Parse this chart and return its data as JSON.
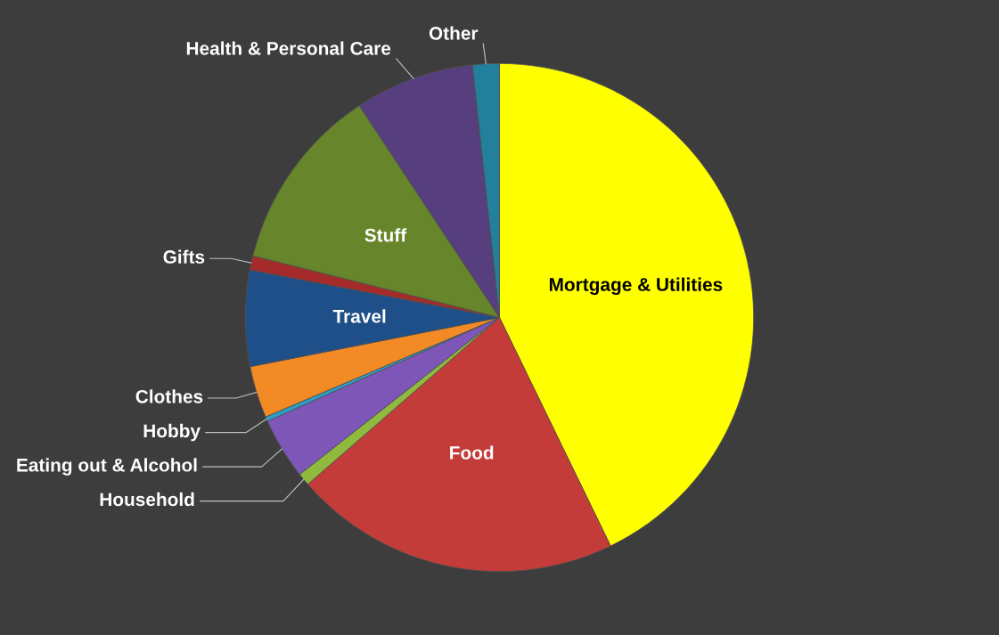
{
  "chart_data": {
    "type": "pie",
    "categories": [
      "Mortgage & Utilities",
      "Food",
      "Household",
      "Eating out & Alcohol",
      "Hobby",
      "Clothes",
      "Travel",
      "Gifts",
      "Stuff",
      "Health & Personal Care",
      "Other"
    ],
    "values": [
      42.8,
      20.8,
      0.8,
      3.9,
      0.3,
      3.3,
      6.1,
      0.9,
      11.8,
      7.6,
      1.7
    ],
    "colors": [
      "#ffff00",
      "#c43c3a",
      "#8fba3e",
      "#7e56b8",
      "#2e9dc8",
      "#f28b25",
      "#1f4f88",
      "#a52b2b",
      "#67852a",
      "#573e7e",
      "#23809d"
    ]
  }
}
